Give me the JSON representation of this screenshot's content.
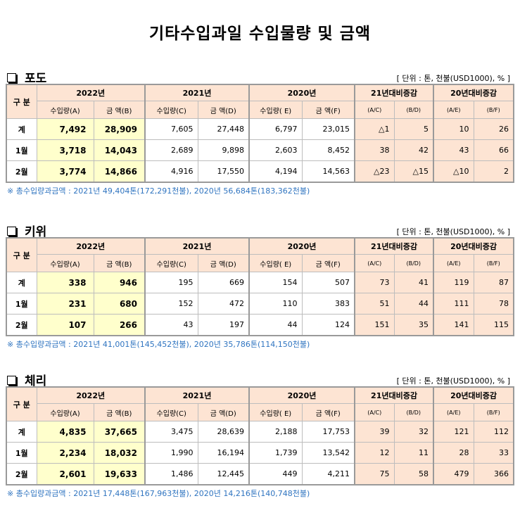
{
  "page": {
    "title": "기타수입과일 수입물량 및 금액"
  },
  "unit_label": "[ 단위 : 톤, 천불(USD1000), % ]",
  "headers": {
    "gubun": "구 분",
    "years": [
      "2022년",
      "2021년",
      "2020년",
      "21년대비증감",
      "20년대비증감"
    ],
    "sub": [
      "수입량(A)",
      "금  액(B)",
      "수입량(C)",
      "금  액(D)",
      "수입량( E)",
      "금  액(F)",
      "(A/C)",
      "(B/D)",
      "(A/E)",
      "(B/F)"
    ]
  },
  "sections": [
    {
      "name": "포도",
      "rows": [
        {
          "label": "계",
          "values": [
            "7,492",
            "28,909",
            "7,605",
            "27,448",
            "6,797",
            "23,015",
            "△1",
            "5",
            "10",
            "26"
          ]
        },
        {
          "label": "1월",
          "values": [
            "3,718",
            "14,043",
            "2,689",
            "9,898",
            "2,603",
            "8,452",
            "38",
            "42",
            "43",
            "66"
          ]
        },
        {
          "label": "2월",
          "values": [
            "3,774",
            "14,866",
            "4,916",
            "17,550",
            "4,194",
            "14,563",
            "△23",
            "△15",
            "△10",
            "2"
          ]
        }
      ],
      "note": "※ 총수입량과금액 : 2021년 49,404톤(172,291천불),  2020년 56,684톤(183,362천불)"
    },
    {
      "name": "키위",
      "rows": [
        {
          "label": "계",
          "values": [
            "338",
            "946",
            "195",
            "669",
            "154",
            "507",
            "73",
            "41",
            "119",
            "87"
          ]
        },
        {
          "label": "1월",
          "values": [
            "231",
            "680",
            "152",
            "472",
            "110",
            "383",
            "51",
            "44",
            "111",
            "78"
          ]
        },
        {
          "label": "2월",
          "values": [
            "107",
            "266",
            "43",
            "197",
            "44",
            "124",
            "151",
            "35",
            "141",
            "115"
          ]
        }
      ],
      "note": "※ 총수입량과금액 : 2021년 41,001톤(145,452천불), 2020년 35,786톤(114,150천불)"
    },
    {
      "name": "체리",
      "rows": [
        {
          "label": "계",
          "values": [
            "4,835",
            "37,665",
            "3,475",
            "28,639",
            "2,188",
            "17,753",
            "39",
            "32",
            "121",
            "112"
          ]
        },
        {
          "label": "1월",
          "values": [
            "2,234",
            "18,032",
            "1,990",
            "16,194",
            "1,739",
            "13,542",
            "12",
            "11",
            "28",
            "33"
          ]
        },
        {
          "label": "2월",
          "values": [
            "2,601",
            "19,633",
            "1,486",
            "12,445",
            "449",
            "4,211",
            "75",
            "58",
            "479",
            "366"
          ]
        }
      ],
      "note": "※ 총수입량과금액 : 2021년 17,448톤(167,963천불), 2020년 14,216톤(140,748천불)"
    }
  ]
}
